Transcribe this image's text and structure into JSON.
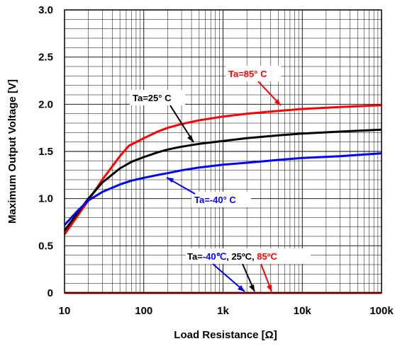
{
  "chart_data": {
    "type": "line",
    "title": "",
    "xlabel": "Load Resistance [Ω]",
    "ylabel": "Maximum Output Voltage [V]",
    "xscale": "log",
    "xlim": [
      10,
      100000
    ],
    "ylim": [
      0,
      3.0
    ],
    "grid": true,
    "x_tick_labels": [
      "10",
      "100",
      "1k",
      "10k",
      "100k"
    ],
    "y_tick_labels": [
      "0",
      "0.5",
      "1.0",
      "1.5",
      "2.0",
      "2.5",
      "3.0"
    ],
    "series": [
      {
        "label_text": "Ta=85° C",
        "color": "#ff0000",
        "x": [
          10,
          15,
          20,
          30,
          50,
          65,
          100,
          150,
          200,
          300,
          500,
          1000,
          2000,
          5000,
          10000,
          30000,
          100000
        ],
        "y": [
          0.62,
          0.83,
          0.98,
          1.2,
          1.45,
          1.56,
          1.64,
          1.71,
          1.75,
          1.79,
          1.83,
          1.87,
          1.9,
          1.93,
          1.95,
          1.97,
          1.99
        ]
      },
      {
        "label_text": "Ta=25° C",
        "color": "#000000",
        "x": [
          10,
          15,
          20,
          30,
          50,
          70,
          100,
          150,
          200,
          300,
          500,
          1000,
          2000,
          5000,
          10000,
          30000,
          100000
        ],
        "y": [
          0.66,
          0.86,
          1.0,
          1.17,
          1.32,
          1.39,
          1.44,
          1.49,
          1.52,
          1.55,
          1.58,
          1.61,
          1.64,
          1.67,
          1.69,
          1.71,
          1.73
        ]
      },
      {
        "label_text": "Ta=-40° C",
        "color": "#0000ff",
        "x": [
          10,
          15,
          20,
          30,
          50,
          70,
          100,
          150,
          200,
          300,
          500,
          1000,
          2000,
          5000,
          10000,
          30000,
          100000
        ],
        "y": [
          0.72,
          0.88,
          0.98,
          1.07,
          1.15,
          1.19,
          1.22,
          1.25,
          1.27,
          1.3,
          1.33,
          1.36,
          1.38,
          1.41,
          1.43,
          1.45,
          1.48
        ]
      },
      {
        "label_text": "",
        "color": "#ff0000",
        "x": [
          10,
          100000
        ],
        "y": [
          0,
          0
        ]
      }
    ],
    "low_annotation": {
      "prefix": "Ta=",
      "cold": "-40℃",
      "sep1": ", ",
      "room": "25ºC",
      "sep2": ", ",
      "hot": "85ºC"
    },
    "colors": {
      "cold": "#0000ff",
      "room": "#000000",
      "hot": "#ff0000"
    }
  }
}
